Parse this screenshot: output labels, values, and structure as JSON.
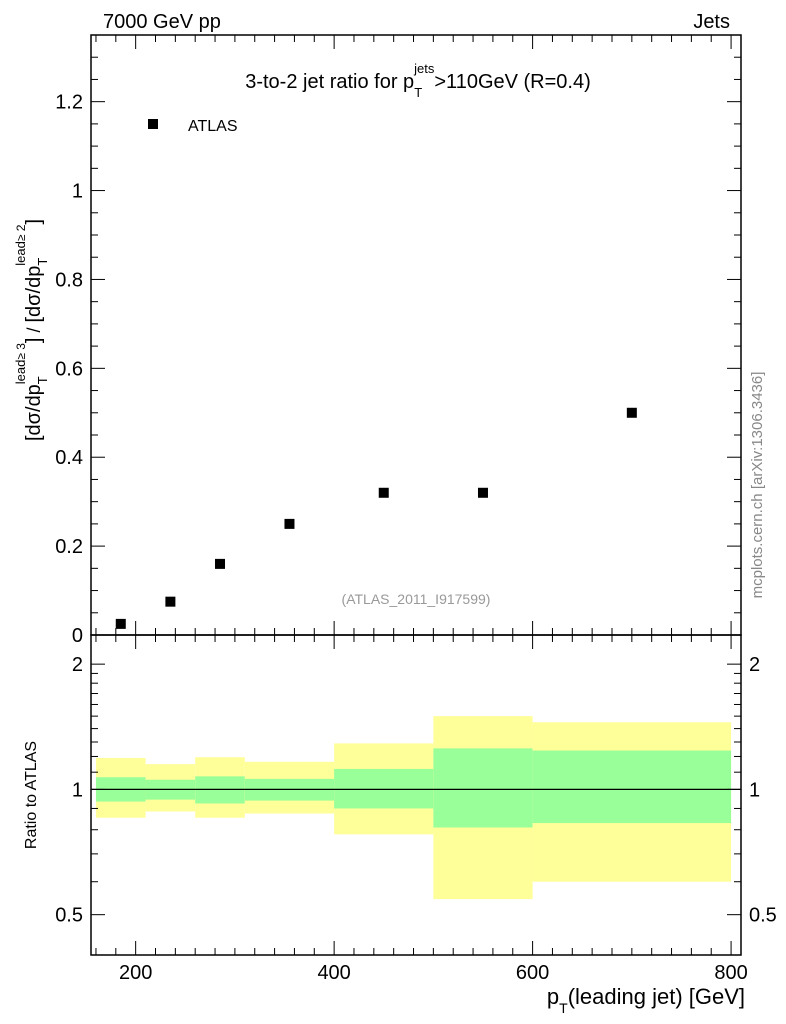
{
  "header": {
    "left": "7000 GeV pp",
    "right": "Jets"
  },
  "chart_data": [
    {
      "type": "scatter",
      "title": "3-to-2 jet ratio for p_T^jets >110GeV (R=0.4)",
      "title_parts": {
        "pre": "3-to-2 jet ratio for p",
        "sub": "T",
        "sup": "jets",
        "post": ">110GeV (R=0.4)"
      },
      "ylabel_parts": {
        "num_open": "[dσ/dp",
        "num_sub": "T",
        "num_sup": "lead",
        "num_cond": "≥ 3",
        "num_close": "]",
        "sep": " / ",
        "den_open": "[dσ/dp",
        "den_sub": "T",
        "den_sup": "lead",
        "den_cond": "≥ 2",
        "den_close": "]"
      },
      "xlim": [
        155,
        810
      ],
      "ylim": [
        0,
        1.35
      ],
      "y_ticks": [
        0,
        0.2,
        0.4,
        0.6,
        0.8,
        1,
        1.2
      ],
      "y_tick_labels": [
        "0",
        "0.2",
        "0.4",
        "0.6",
        "0.8",
        "1",
        "1.2"
      ],
      "legend": {
        "position": "top-left",
        "entries": [
          "ATLAS"
        ]
      },
      "series": [
        {
          "name": "ATLAS",
          "x": [
            185,
            235,
            285,
            355,
            450,
            550,
            700
          ],
          "y": [
            0.025,
            0.075,
            0.16,
            0.25,
            0.32,
            0.32,
            0.5
          ]
        }
      ],
      "annotation": "(ATLAS_2011_I917599)",
      "side_label": "mcplots.cern.ch [arXiv:1306.3436]"
    },
    {
      "type": "area",
      "ylabel": "Ratio to ATLAS",
      "xlabel_parts": {
        "pre": "p",
        "sub": "T",
        "post": "(leading jet) [GeV]"
      },
      "xlim": [
        155,
        810
      ],
      "ylim": [
        0.4,
        2.35
      ],
      "y_scale": "log",
      "y_ticks": [
        0.5,
        1,
        2
      ],
      "y_tick_labels": [
        "0.5",
        "1",
        "2"
      ],
      "x_ticks": [
        200,
        400,
        600,
        800
      ],
      "x_tick_labels": [
        "200",
        "400",
        "600",
        "800"
      ],
      "reference_line": 1,
      "bins": [
        {
          "xlo": 160,
          "xhi": 210,
          "inner": [
            0.935,
            1.07
          ],
          "outer": [
            0.855,
            1.19
          ]
        },
        {
          "xlo": 210,
          "xhi": 260,
          "inner": [
            0.945,
            1.055
          ],
          "outer": [
            0.885,
            1.15
          ]
        },
        {
          "xlo": 260,
          "xhi": 310,
          "inner": [
            0.925,
            1.075
          ],
          "outer": [
            0.855,
            1.195
          ]
        },
        {
          "xlo": 310,
          "xhi": 400,
          "inner": [
            0.94,
            1.06
          ],
          "outer": [
            0.875,
            1.165
          ]
        },
        {
          "xlo": 400,
          "xhi": 500,
          "inner": [
            0.9,
            1.12
          ],
          "outer": [
            0.78,
            1.29
          ]
        },
        {
          "xlo": 500,
          "xhi": 600,
          "inner": [
            0.81,
            1.255
          ],
          "outer": [
            0.545,
            1.5
          ]
        },
        {
          "xlo": 600,
          "xhi": 800,
          "inner": [
            0.83,
            1.24
          ],
          "outer": [
            0.6,
            1.45
          ]
        }
      ],
      "band_colors": {
        "inner": "#99ff99",
        "outer": "#ffff99"
      }
    }
  ]
}
